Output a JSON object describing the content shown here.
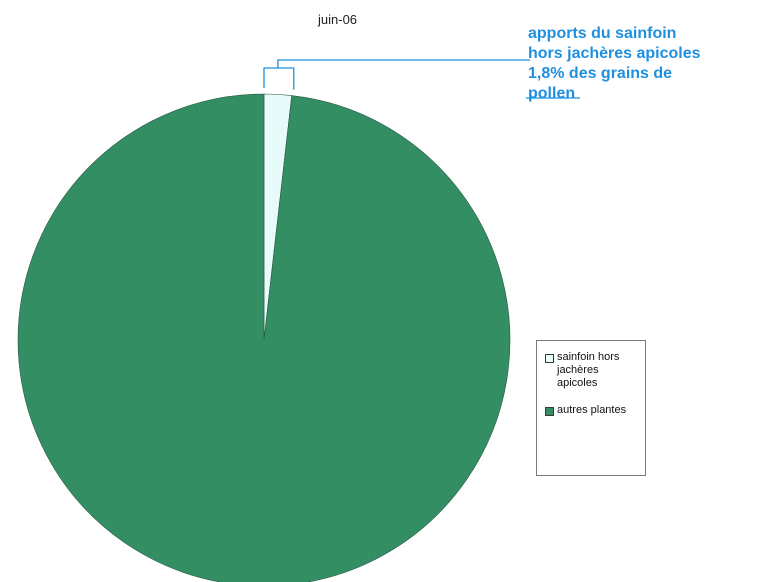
{
  "chart_data": {
    "type": "pie",
    "title": "juin-06",
    "categories": [
      "sainfoin hors jachères apicoles",
      "autres plantes"
    ],
    "values": [
      1.8,
      98.2
    ],
    "unit": "%",
    "colors": [
      "#e8fbfb",
      "#338f63"
    ],
    "legend": {
      "position": "right",
      "entries": [
        {
          "label": "sainfoin hors\njachères\napicoles",
          "color": "#e8fbfb"
        },
        {
          "label": "autres plantes",
          "color": "#338f63"
        }
      ]
    },
    "annotation": {
      "lines": [
        "apports du sainfoin",
        "hors jachères apicoles",
        "1,8% des grains de",
        "pollen"
      ],
      "color": "#1f8fe0"
    }
  }
}
